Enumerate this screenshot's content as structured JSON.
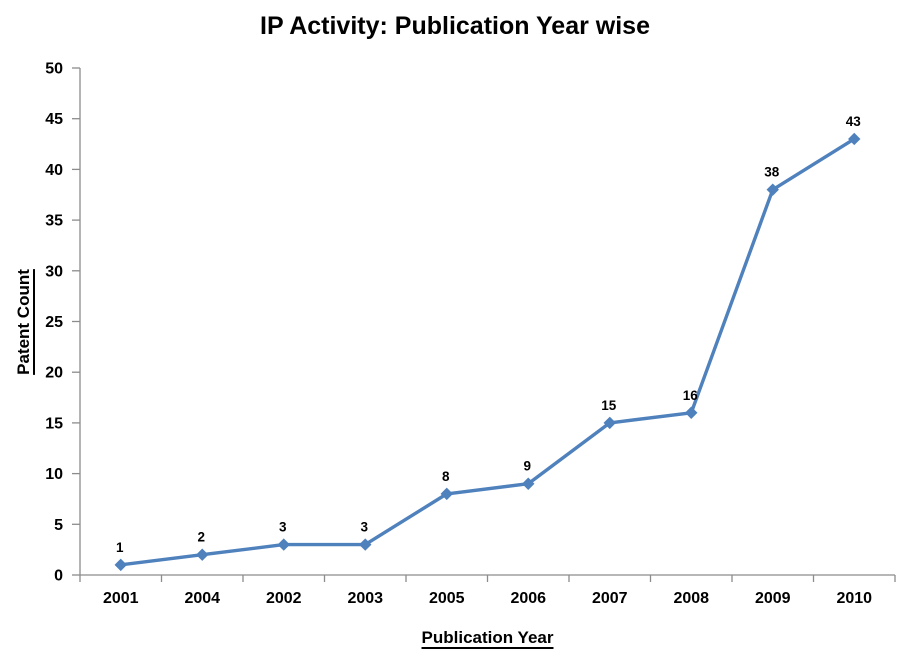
{
  "chart_data": {
    "type": "line",
    "title": "IP Activity: Publication Year wise",
    "xlabel": "Publication Year",
    "ylabel": "Patent Count",
    "categories": [
      "2001",
      "2004",
      "2002",
      "2003",
      "2005",
      "2006",
      "2007",
      "2008",
      "2009",
      "2010"
    ],
    "values": [
      1,
      2,
      3,
      3,
      8,
      9,
      15,
      16,
      38,
      43
    ],
    "ylim": [
      0,
      50
    ],
    "ytick_step": 5,
    "ytick_labels": [
      "0",
      "5",
      "10",
      "15",
      "20",
      "25",
      "30",
      "35",
      "40",
      "45",
      "50"
    ],
    "data_labels": [
      "1",
      "2",
      "3",
      "3",
      "8",
      "9",
      "15",
      "16",
      "38",
      "43"
    ],
    "grid": false,
    "legend": "none",
    "marker": "diamond",
    "colors": {
      "series": "#4F81BD",
      "axis": "#8C8C8C",
      "text": "#000000",
      "background": "#FFFFFF"
    }
  }
}
